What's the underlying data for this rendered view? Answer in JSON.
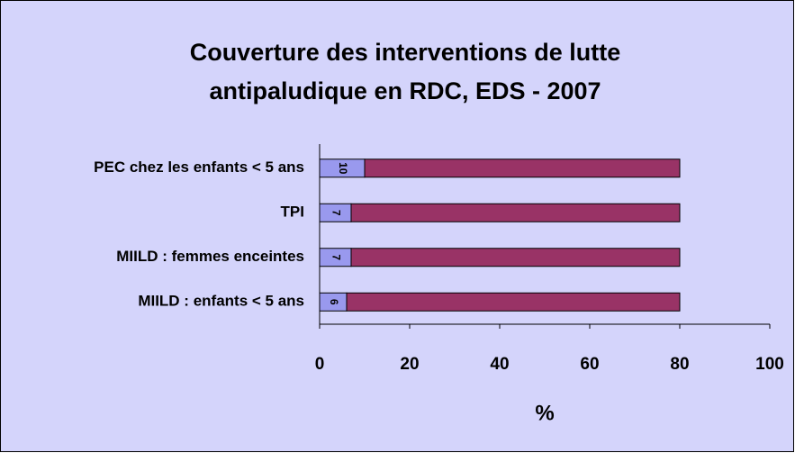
{
  "chart_data": {
    "type": "stacked-bar-horizontal",
    "title": [
      "Couverture des interventions de lutte",
      "antipaludique en RDC, EDS - 2007"
    ],
    "categories": [
      "PEC chez les enfants < 5 ans",
      "TPI",
      "MIILD : femmes enceintes",
      "MIILD : enfants < 5 ans"
    ],
    "series": [
      {
        "color": "#9999ee",
        "values": [
          10,
          7,
          7,
          6
        ]
      },
      {
        "color": "#993366",
        "values": [
          70,
          73,
          73,
          74
        ]
      }
    ],
    "xlim": [
      0,
      100
    ],
    "xticks": [
      0,
      20,
      40,
      60,
      80,
      100
    ],
    "xlabel": "%"
  }
}
